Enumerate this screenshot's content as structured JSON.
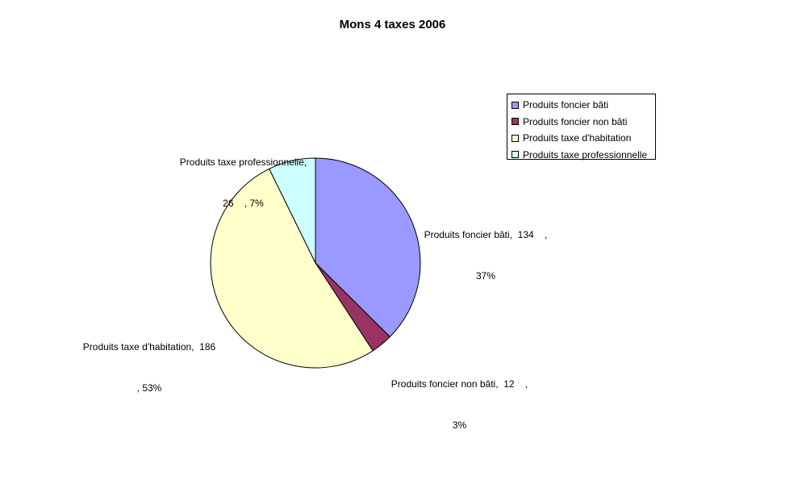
{
  "chart_data": {
    "type": "pie",
    "title": "Mons 4 taxes 2006",
    "slices": [
      {
        "name": "Produits foncier bâti",
        "value": 134,
        "percent": 37,
        "color": "#9999ff",
        "label_line1": "Produits foncier bâti,  134    ,",
        "label_line2": "37%"
      },
      {
        "name": "Produits foncier non bâti",
        "value": 12,
        "percent": 3,
        "color": "#993366",
        "label_line1": "Produits foncier non bâti,  12    ,",
        "label_line2": "3%"
      },
      {
        "name": "Produits taxe d'habitation",
        "value": 186,
        "percent": 53,
        "color": "#ffffcc",
        "label_line1": "Produits taxe d'habitation,  186",
        "label_line2": ", 53%"
      },
      {
        "name": "Produits taxe professionnelle",
        "value": 26,
        "percent": 7,
        "color": "#ccffff",
        "label_line1": "Produits taxe professionnelle,",
        "label_line2": "26    , 7%"
      }
    ],
    "legend": {
      "position": "right",
      "entries": [
        "Produits foncier bâti",
        "Produits foncier non bâti",
        "Produits taxe d'habitation",
        "Produits taxe professionnelle"
      ]
    }
  }
}
